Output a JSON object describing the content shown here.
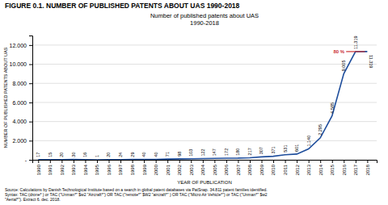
{
  "chart_data": {
    "type": "line",
    "figure_title": "FIGURE 0.1. NUMBER OF PUBLISHED PATENTS ABOUT UAS 1990-2018",
    "title": "Number of published patents about UAS\n1990-2018",
    "xlabel": "YEAR OF PUBLICATION",
    "ylabel": "NUMBER OF PUBLISHED PATENTS ABOUT UAS",
    "x": [
      1990,
      1991,
      1992,
      1993,
      1994,
      1995,
      1996,
      1997,
      1998,
      1999,
      2000,
      2001,
      2002,
      2003,
      2004,
      2005,
      2006,
      2007,
      2008,
      2009,
      2010,
      2011,
      2012,
      2013,
      2014,
      2015,
      2016,
      2017,
      2018
    ],
    "values": [
      17,
      15,
      20,
      30,
      16,
      1,
      20,
      24,
      29,
      40,
      40,
      71,
      98,
      103,
      122,
      147,
      172,
      180,
      217,
      307,
      371,
      531,
      601,
      1140,
      2295,
      4585,
      9005,
      11319,
      11319
    ],
    "value_labels": [
      "17",
      "15",
      "20",
      "30",
      "16",
      "1",
      "20",
      "24",
      "29",
      "40",
      "40",
      "71",
      "98",
      "103",
      "122",
      "147",
      "172",
      "180",
      "217",
      "307",
      "371",
      "531",
      "601",
      "1.140",
      "2.295",
      "4.585",
      "9.005",
      "11.319",
      "11.319"
    ],
    "data_labels": true,
    "color": "#1f4e9c",
    "xlim": [
      1989.5,
      2018.8
    ],
    "xticks": [
      1990,
      1991,
      1992,
      1993,
      1994,
      1995,
      1996,
      1997,
      1998,
      1999,
      2000,
      2001,
      2002,
      2003,
      2004,
      2005,
      2006,
      2007,
      2008,
      2009,
      2010,
      2011,
      2012,
      2013,
      2014,
      2015,
      2016,
      2017,
      2018
    ],
    "ylim": [
      0,
      13000
    ],
    "yticks": [
      {
        "value": 0,
        "label": "-"
      },
      {
        "value": 2000,
        "label": "2.000"
      },
      {
        "value": 4000,
        "label": "4.000"
      },
      {
        "value": 6000,
        "label": "6.000"
      },
      {
        "value": 8000,
        "label": "8.000"
      },
      {
        "value": 10000,
        "label": "10.000"
      },
      {
        "value": 12000,
        "label": "12.000"
      }
    ],
    "grid": true,
    "annotations": [
      {
        "text": "80 %",
        "x": [
          2016.2,
          2017.8
        ],
        "y": 11319,
        "color": "#cc3333"
      }
    ],
    "source": [
      "Source: Calculations by Danish Technological Institute based on a search in global patent databases via PatSnap. 34.811 patent families identified.",
      "Syntax: TAC:(drone* ) or TAC:(\"Unman*\" $w2 \"Aircraft*\") OR TAC:(\"remote*\" $W2 \"aircraft*\" ) OR TAC:(\"Micro Air Vehicle*\") or TAC:(\"Unman*\" $w2",
      "\"Aerial*\"). Extract 6. dec. 2018."
    ]
  }
}
